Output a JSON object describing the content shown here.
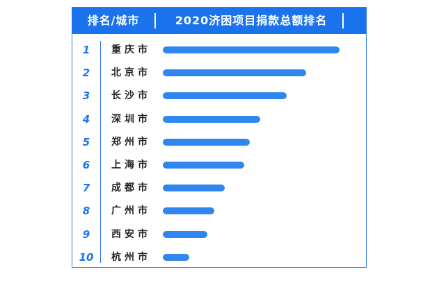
{
  "header": {
    "rank_city": "排名/城市",
    "title": "2020济困项目捐款总额排名"
  },
  "colors": {
    "accent": "#1a73ec",
    "bar": "#2e86ee"
  },
  "chart_data": {
    "type": "bar",
    "orientation": "horizontal",
    "title": "2020济困项目捐款总额排名",
    "ranks": [
      "1",
      "2",
      "3",
      "4",
      "5",
      "6",
      "7",
      "8",
      "9",
      "10"
    ],
    "categories": [
      "重庆市",
      "北京市",
      "长沙市",
      "深圳市",
      "郑州市",
      "上海市",
      "成都市",
      "广州市",
      "西安市",
      "杭州市"
    ],
    "values": [
      100,
      81,
      70,
      55,
      49,
      46,
      35,
      29,
      25,
      15
    ],
    "xlim": [
      0,
      100
    ],
    "grid": false,
    "legend": "none"
  }
}
